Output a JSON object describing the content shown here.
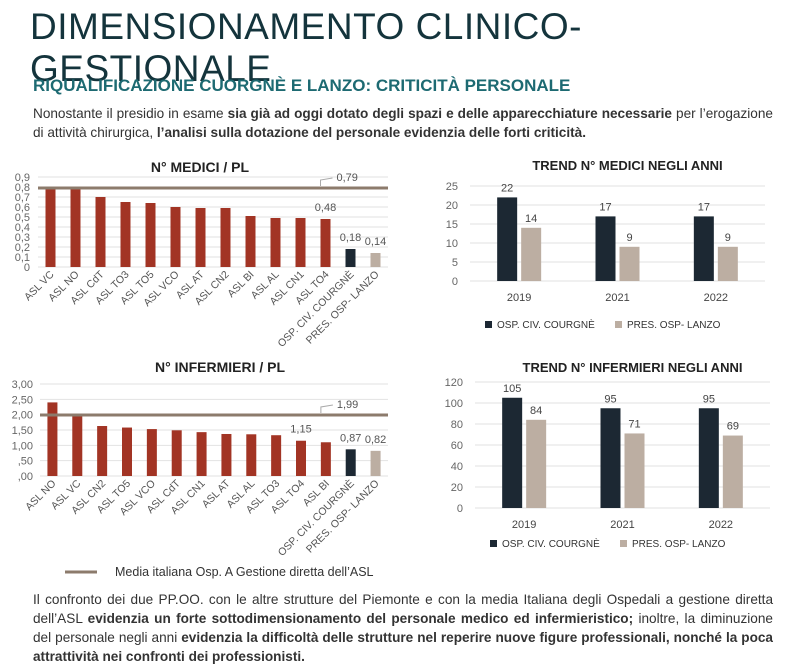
{
  "title": "DIMENSIONAMENTO CLINICO-GESTIONALE",
  "subtitle": "RIQUALIFICAZIONE CUORGNÈ E LANZO: CRITICITÀ PERSONALE",
  "intro": {
    "t1": "Nonostante il presidio in esame ",
    "b1": "sia già ad oggi dotato degli spazi e delle apparecchiature necessarie",
    "t2": " per l’erogazione di attività chirurgica, ",
    "b2": "l’analisi sulla dotazione del personale evidenzia delle forti criticità."
  },
  "outro": {
    "t1": "Il confronto dei due PP.OO. con le altre strutture del Piemonte e con la media Italiana degli Ospedali a gestione diretta dell’ASL ",
    "b1": "evidenzia un forte sottodimensionamento del personale medico ed infermieristico;",
    "t2": " inoltre, la diminuzione del personale negli anni ",
    "b2": "evidenzia la difficoltà delle strutture nel reperire nuove figure professionali, nonché la poca attrattività nei confronti dei professionisti."
  },
  "legend_line": "Media italiana Osp. A Gestione diretta dell’ASL",
  "colors": {
    "asl": "#a23424",
    "cuorgne": "#1c2833",
    "lanzo": "#bcaea2",
    "mean_line": "#8c7b6c",
    "title": "#14343c",
    "subtitle": "#1d6a72"
  },
  "chart_data": [
    {
      "type": "bar",
      "title": "N° MEDICI / PL",
      "categories": [
        "ASL VC",
        "ASL NO",
        "ASL CdT",
        "ASL TO3",
        "ASL TO5",
        "ASL VCO",
        "ASL AT",
        "ASL CN2",
        "ASL BI",
        "ASL AL",
        "ASL CN1",
        "ASL TO4",
        "OSP. CIV. COURGNÈ",
        "PRES. OSP- LANZO"
      ],
      "values": [
        0.79,
        0.79,
        0.7,
        0.65,
        0.64,
        0.6,
        0.59,
        0.59,
        0.51,
        0.49,
        0.49,
        0.48,
        0.18,
        0.14
      ],
      "data_labels": {
        "11": "0,48",
        "12": "0,18",
        "13": "0,14"
      },
      "mean": 0.79,
      "mean_label": "0,79",
      "ylim": [
        0,
        0.9
      ],
      "ticks": [
        "0",
        "0,1",
        "0,2",
        "0,3",
        "0,4",
        "0,5",
        "0,6",
        "0,7",
        "0,8",
        "0,9"
      ],
      "grid": true
    },
    {
      "type": "bar",
      "title": "TREND N° MEDICI NEGLI ANNI",
      "categories": [
        "2019",
        "2021",
        "2022"
      ],
      "series": [
        {
          "name": "OSP. CIV. COURGNÈ",
          "values": [
            22,
            17,
            17
          ]
        },
        {
          "name": "PRES. OSP- LANZO",
          "values": [
            14,
            9,
            9
          ]
        }
      ],
      "ylim": [
        0,
        25
      ],
      "ticks": [
        "0",
        "5",
        "10",
        "15",
        "20",
        "25"
      ],
      "grid": true,
      "legend": "bottom"
    },
    {
      "type": "bar",
      "title": "N° INFERMIERI / PL",
      "categories": [
        "ASL NO",
        "ASL VC",
        "ASL CN2",
        "ASL TO5",
        "ASL VCO",
        "ASL CdT",
        "ASL CN1",
        "ASL AT",
        "ASL AL",
        "ASL TO3",
        "ASL TO4",
        "ASL BI",
        "OSP. CIV. COURGNÈ",
        "PRES. OSP- LANZO"
      ],
      "values": [
        2.4,
        1.97,
        1.63,
        1.58,
        1.53,
        1.49,
        1.43,
        1.37,
        1.36,
        1.33,
        1.15,
        1.1,
        0.87,
        0.82
      ],
      "data_labels": {
        "10": "1,15",
        "12": "0,87",
        "13": "0,82"
      },
      "mean": 1.99,
      "mean_label": "1,99",
      "ylim": [
        0,
        3
      ],
      "ticks": [
        ",00",
        ",50",
        "1,00",
        "1,50",
        "2,00",
        "2,50",
        "3,00"
      ],
      "grid": true
    },
    {
      "type": "bar",
      "title": "TREND N° INFERMIERI NEGLI ANNI",
      "categories": [
        "2019",
        "2021",
        "2022"
      ],
      "series": [
        {
          "name": "OSP. CIV. COURGNÈ",
          "values": [
            105,
            95,
            95
          ]
        },
        {
          "name": "PRES. OSP- LANZO",
          "values": [
            84,
            71,
            69
          ]
        }
      ],
      "ylim": [
        0,
        120
      ],
      "ticks": [
        "0",
        "20",
        "40",
        "60",
        "80",
        "100",
        "120"
      ],
      "grid": true,
      "legend": "bottom"
    }
  ]
}
